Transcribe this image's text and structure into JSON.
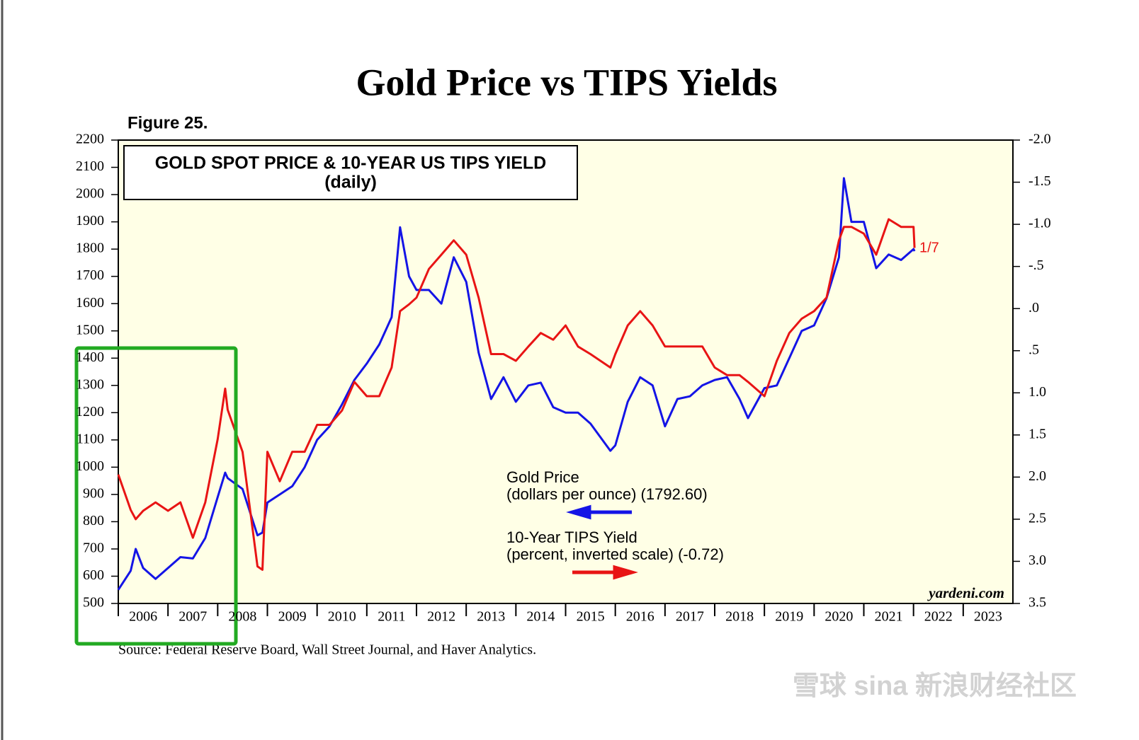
{
  "chart_data": {
    "type": "line",
    "title": "Gold Price vs TIPS Yields",
    "figure_label": "Figure 25.",
    "box_title": "GOLD SPOT PRICE & 10-YEAR US TIPS YIELD",
    "box_subtitle": "(daily)",
    "source": "Source: Federal Reserve Board, Wall Street Journal, and Haver Analytics.",
    "credit": "yardeni.com",
    "end_label": "1/7",
    "watermark": "雪球 sina 新浪财经社区",
    "annotations": [
      "(dollars per ounce) (1792.60)",
      "(percent, inverted scale) (-0.72)"
    ],
    "x": [
      2006.0,
      2006.25,
      2006.35,
      2006.5,
      2006.75,
      2007.0,
      2007.25,
      2007.5,
      2007.75,
      2008.0,
      2008.15,
      2008.2,
      2008.5,
      2008.8,
      2008.9,
      2009.0,
      2009.25,
      2009.5,
      2009.75,
      2010.0,
      2010.25,
      2010.5,
      2010.75,
      2011.0,
      2011.25,
      2011.5,
      2011.67,
      2011.85,
      2012.0,
      2012.25,
      2012.5,
      2012.75,
      2013.0,
      2013.25,
      2013.5,
      2013.75,
      2014.0,
      2014.25,
      2014.5,
      2014.75,
      2015.0,
      2015.25,
      2015.5,
      2015.9,
      2016.0,
      2016.25,
      2016.5,
      2016.75,
      2017.0,
      2017.25,
      2017.5,
      2017.75,
      2018.0,
      2018.25,
      2018.5,
      2018.67,
      2019.0,
      2019.25,
      2019.5,
      2019.75,
      2020.0,
      2020.25,
      2020.5,
      2020.6,
      2020.75,
      2021.0,
      2021.25,
      2021.5,
      2021.75,
      2022.0,
      2022.02
    ],
    "series": [
      {
        "name": "Gold Price",
        "color": "#1414e6",
        "values": [
          550,
          620,
          700,
          630,
          590,
          630,
          670,
          665,
          740,
          890,
          980,
          960,
          920,
          750,
          760,
          870,
          900,
          930,
          1000,
          1100,
          1150,
          1230,
          1320,
          1380,
          1450,
          1550,
          1880,
          1700,
          1650,
          1650,
          1600,
          1770,
          1680,
          1420,
          1250,
          1330,
          1240,
          1300,
          1310,
          1220,
          1200,
          1200,
          1160,
          1060,
          1080,
          1240,
          1330,
          1300,
          1150,
          1250,
          1260,
          1300,
          1320,
          1330,
          1250,
          1180,
          1290,
          1300,
          1400,
          1500,
          1520,
          1620,
          1770,
          2060,
          1900,
          1900,
          1730,
          1780,
          1760,
          1800,
          1792.6
        ]
      },
      {
        "name": "10-Year TIPS Yield",
        "color": "#e81414",
        "axis": "y2",
        "values": [
          1.97,
          2.39,
          2.5,
          2.4,
          2.3,
          2.4,
          2.3,
          2.72,
          2.3,
          1.55,
          0.95,
          1.2,
          1.7,
          3.06,
          3.1,
          1.7,
          2.05,
          1.7,
          1.7,
          1.38,
          1.38,
          1.21,
          0.87,
          1.04,
          1.04,
          0.7,
          0.03,
          -0.05,
          -0.13,
          -0.47,
          -0.64,
          -0.81,
          -0.64,
          -0.13,
          0.54,
          0.54,
          0.62,
          0.45,
          0.29,
          0.37,
          0.2,
          0.45,
          0.54,
          0.7,
          0.54,
          0.2,
          0.03,
          0.2,
          0.45,
          0.45,
          0.45,
          0.45,
          0.7,
          0.79,
          0.79,
          0.87,
          1.04,
          0.62,
          0.29,
          0.12,
          0.03,
          -0.13,
          -0.81,
          -0.97,
          -0.97,
          -0.89,
          -0.64,
          -1.06,
          -0.97,
          -0.97,
          -0.72
        ]
      }
    ],
    "xlim": [
      2006,
      2024
    ],
    "xticks": [
      2006,
      2007,
      2008,
      2009,
      2010,
      2011,
      2012,
      2013,
      2014,
      2015,
      2016,
      2017,
      2018,
      2019,
      2020,
      2021,
      2022,
      2023
    ],
    "ylim": [
      500,
      2200
    ],
    "yticks": [
      500,
      600,
      700,
      800,
      900,
      1000,
      1100,
      1200,
      1300,
      1400,
      1500,
      1600,
      1700,
      1800,
      1900,
      2000,
      2100,
      2200
    ],
    "y2lim": [
      3.5,
      -2.0
    ],
    "y2ticks": [
      {
        "value": -2.0,
        "label": "-2.0"
      },
      -1.5,
      {
        "value": -1.0,
        "label": "-1.0"
      },
      {
        "value": -0.5,
        "label": "-.5"
      },
      {
        "value": 0,
        "label": ".0"
      },
      {
        "value": 0.5,
        "label": ".5"
      },
      {
        "value": 1.0,
        "label": "1.0"
      },
      1.5,
      {
        "value": 2.0,
        "label": "2.0"
      },
      2.5,
      {
        "value": 3.0,
        "label": "3.0"
      },
      3.5
    ],
    "background": "#ffffe6"
  }
}
